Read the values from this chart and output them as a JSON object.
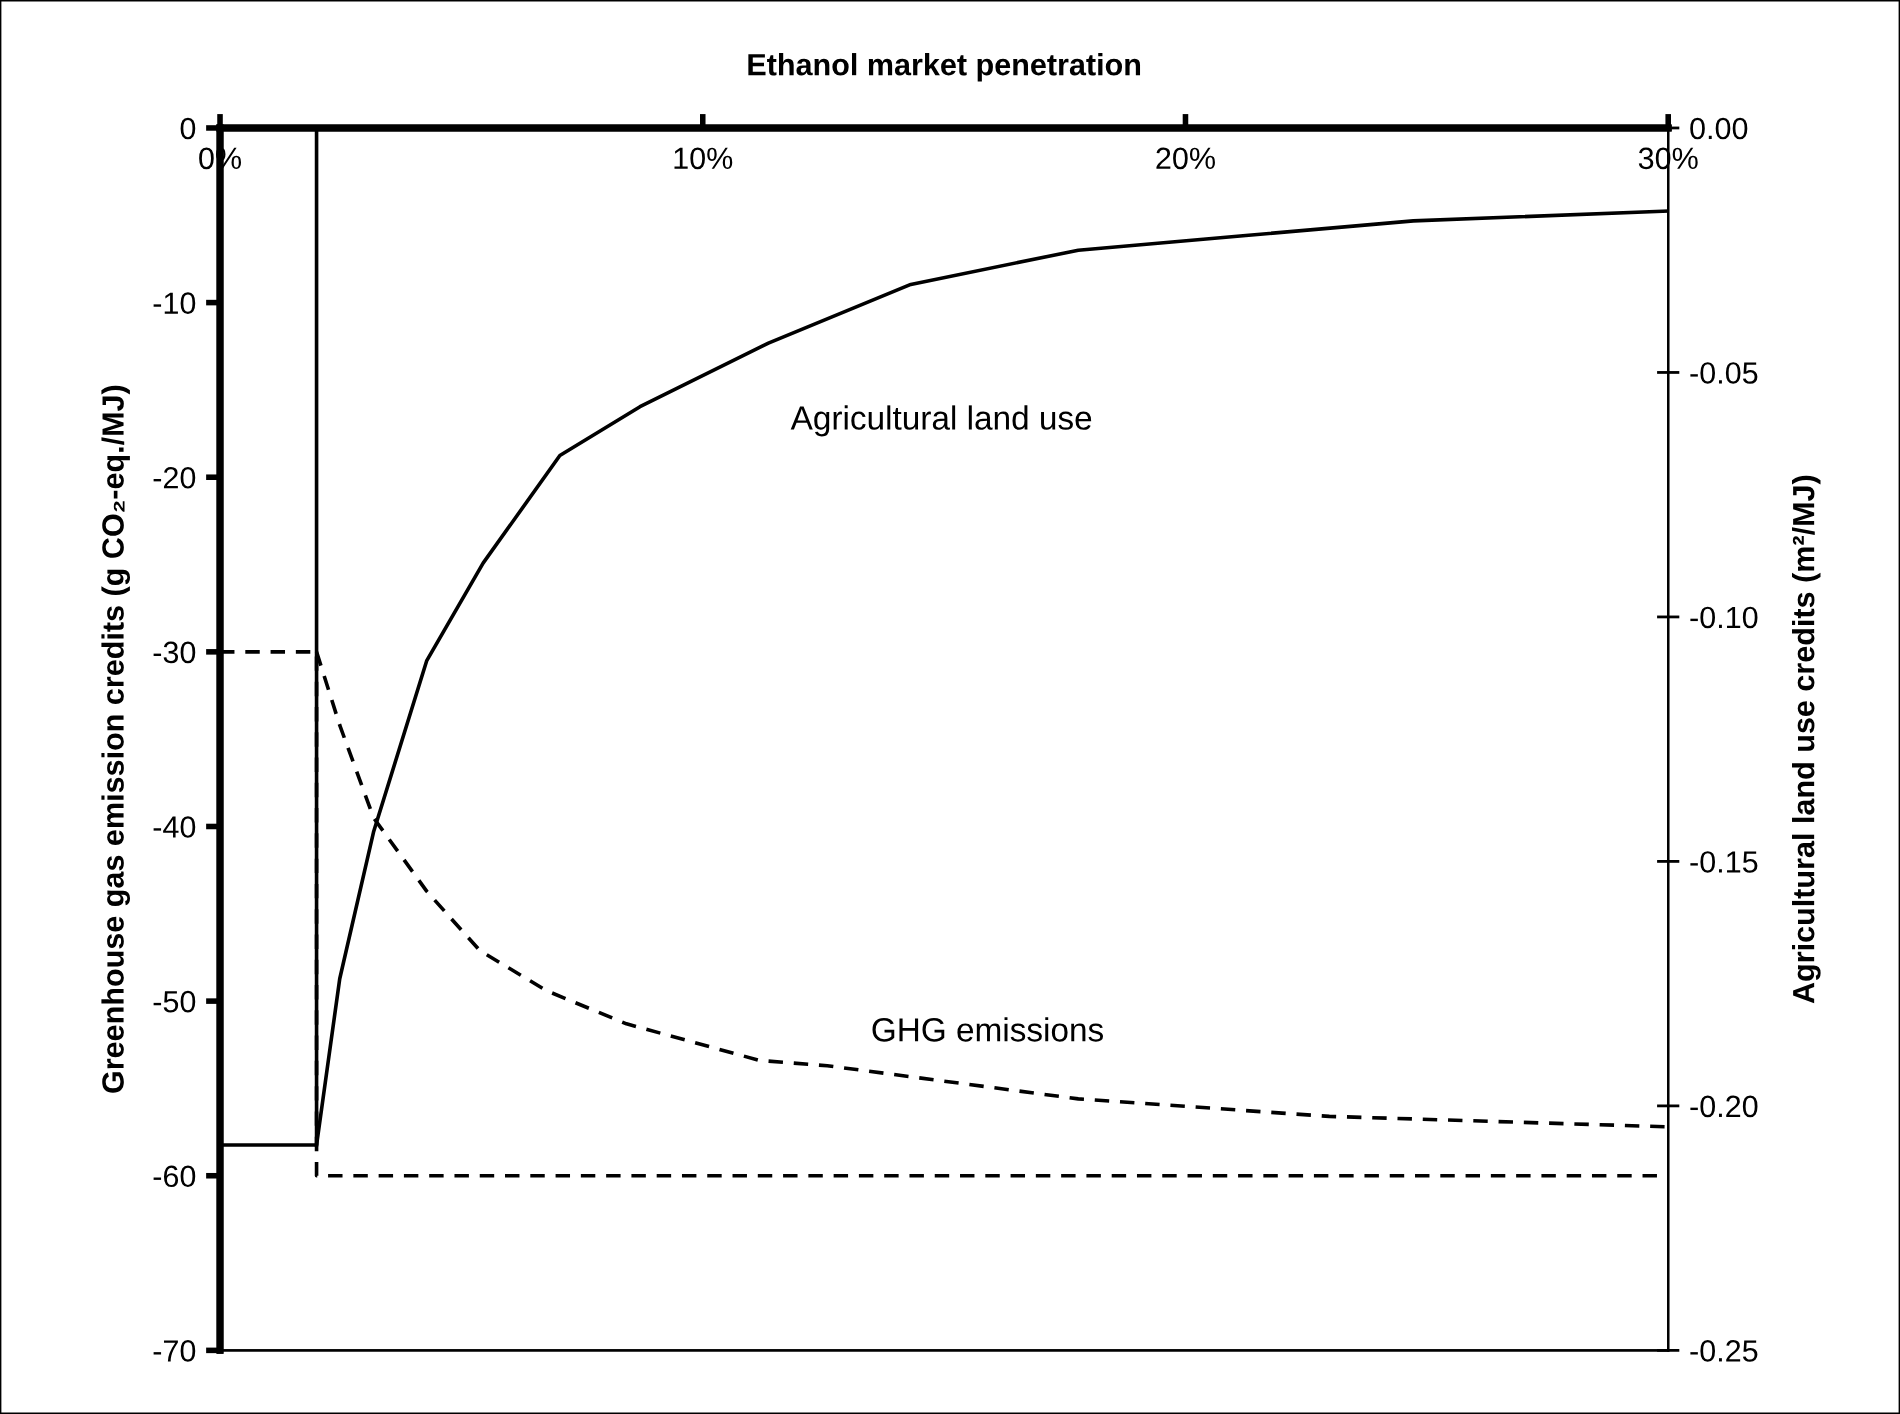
{
  "chart_data": {
    "type": "line",
    "xlabel": "Ethanol market penetration",
    "ylabel": "Greenhouse gas emission credits (g CO₂-eq./MJ)",
    "y2label": "Agricultural land use credits (m²/MJ)",
    "xlim": [
      0,
      30
    ],
    "xticks": [
      {
        "value": 0,
        "label": "0%"
      },
      {
        "value": 10,
        "label": "10%"
      },
      {
        "value": 20,
        "label": "20%"
      },
      {
        "value": 30,
        "label": "30%"
      }
    ],
    "ylim": [
      -70,
      0
    ],
    "yticks": [
      -70,
      -60,
      -50,
      -40,
      -30,
      -20,
      -10,
      0
    ],
    "y2lim": [
      -0.25,
      0
    ],
    "y2ticks": [
      {
        "value": -0.25,
        "label": "-0.25"
      },
      {
        "value": -0.2,
        "label": "-0.20"
      },
      {
        "value": -0.15,
        "label": "-0.15"
      },
      {
        "value": -0.1,
        "label": "-0.10"
      },
      {
        "value": -0.05,
        "label": "-0.05"
      },
      {
        "value": 0,
        "label": "0.00"
      }
    ],
    "grid": false,
    "legend": false,
    "marker": "none",
    "series": [
      {
        "name": "Agricultural land use",
        "axis": "y2",
        "color": "#000000",
        "line_style": "solid",
        "x": [
          2.0,
          2.48,
          3.18,
          4.28,
          5.45,
          7.04,
          8.7,
          11.36,
          14.31,
          17.78,
          21.25,
          24.72,
          30
        ],
        "values": [
          -0.208,
          -0.174,
          -0.144,
          -0.109,
          -0.089,
          -0.067,
          -0.057,
          -0.044,
          -0.032,
          -0.025,
          -0.022,
          -0.019,
          -0.017
        ]
      },
      {
        "name": "GHG emissions",
        "color": "#000000",
        "line_style": "dashed",
        "x": [
          2.0,
          2.48,
          3.18,
          4.28,
          5.38,
          6.76,
          8.42,
          11.18,
          12.58,
          17.78,
          22.98,
          30
        ],
        "values": [
          -30,
          -34.2,
          -39.5,
          -43.7,
          -47.1,
          -49.4,
          -51.3,
          -53.4,
          -53.7,
          -55.6,
          -56.6,
          -57.2
        ]
      },
      {
        "axis": "y2",
        "color": "#000000",
        "line_style": "solid",
        "x": [
          0,
          2,
          2
        ],
        "values": [
          -0.208,
          -0.208,
          0
        ]
      },
      {
        "color": "#000000",
        "line_style": "dashed",
        "x": [
          0,
          2,
          2,
          30
        ],
        "values": [
          -30,
          -30,
          -60,
          -60
        ]
      }
    ]
  }
}
